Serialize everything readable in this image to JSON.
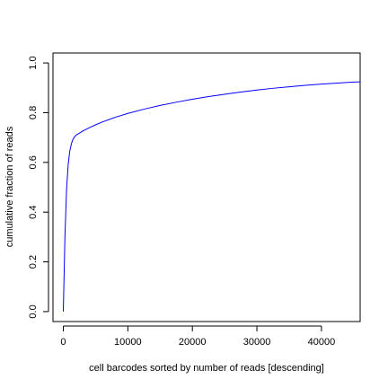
{
  "chart_data": {
    "type": "line",
    "title": "",
    "xlabel": "cell barcodes sorted by number of reads [descending]",
    "ylabel": "cumulative fraction of reads",
    "xlim": [
      -1600,
      46000
    ],
    "ylim": [
      -0.04,
      1.04
    ],
    "x_ticks": [
      0,
      10000,
      20000,
      30000,
      40000
    ],
    "x_tick_labels": [
      "0",
      "10000",
      "20000",
      "30000",
      "40000"
    ],
    "y_ticks": [
      0.0,
      0.2,
      0.4,
      0.6,
      0.8,
      1.0
    ],
    "y_tick_labels": [
      "0.0",
      "0.2",
      "0.4",
      "0.6",
      "0.8",
      "1.0"
    ],
    "grid": false,
    "series": [
      {
        "color": "#0000ff",
        "x": [
          0,
          100,
          250,
          500,
          750,
          1000,
          1250,
          1500,
          1750,
          2000,
          2500,
          3000,
          4000,
          5000,
          6000,
          8000,
          10000,
          12500,
          15000,
          17500,
          20000,
          22500,
          25000,
          27500,
          30000,
          32500,
          35000,
          37500,
          40000,
          42500,
          45000,
          46000
        ],
        "y": [
          0.0,
          0.12,
          0.3,
          0.49,
          0.59,
          0.645,
          0.675,
          0.693,
          0.703,
          0.71,
          0.718,
          0.726,
          0.739,
          0.751,
          0.762,
          0.781,
          0.797,
          0.814,
          0.829,
          0.842,
          0.854,
          0.865,
          0.874,
          0.883,
          0.891,
          0.898,
          0.904,
          0.91,
          0.915,
          0.919,
          0.923,
          0.924
        ]
      }
    ]
  }
}
